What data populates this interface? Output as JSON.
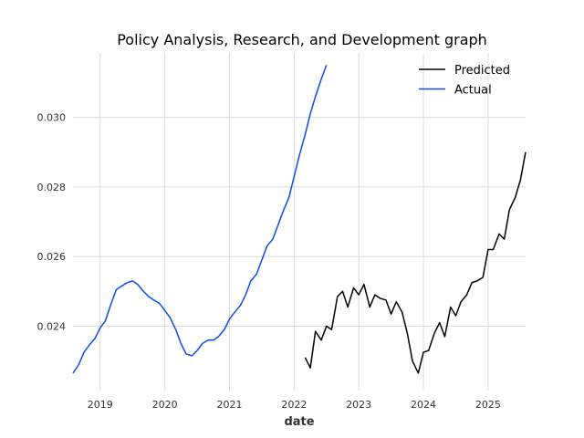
{
  "chart_data": {
    "type": "line",
    "title": "Policy Analysis, Research, and Development graph",
    "xlabel": "date",
    "ylabel": "",
    "xlim": [
      2018.58,
      2025.58
    ],
    "ylim": [
      0.02215,
      0.03185
    ],
    "x_ticks": [
      2019,
      2020,
      2021,
      2022,
      2023,
      2024,
      2025
    ],
    "x_tick_labels": [
      "2019",
      "2020",
      "2021",
      "2022",
      "2023",
      "2024",
      "2025"
    ],
    "y_ticks": [
      0.024,
      0.026,
      0.028,
      0.03
    ],
    "y_tick_labels": [
      "0.024",
      "0.026",
      "0.028",
      "0.030"
    ],
    "grid": true,
    "legend_position": "top-right",
    "series": [
      {
        "name": "Predicted",
        "color": "#000000",
        "x": [
          2022.17,
          2022.25,
          2022.33,
          2022.42,
          2022.5,
          2022.58,
          2022.67,
          2022.75,
          2022.83,
          2022.92,
          2023.0,
          2023.08,
          2023.17,
          2023.25,
          2023.33,
          2023.42,
          2023.5,
          2023.58,
          2023.67,
          2023.75,
          2023.83,
          2023.92,
          2024.0,
          2024.08,
          2024.17,
          2024.25,
          2024.33,
          2024.42,
          2024.5,
          2024.58,
          2024.67,
          2024.75,
          2024.83,
          2024.92,
          2025.0,
          2025.08,
          2025.17,
          2025.25,
          2025.33,
          2025.42,
          2025.5,
          2025.58
        ],
        "y": [
          0.0231,
          0.0228,
          0.02385,
          0.0236,
          0.024,
          0.0239,
          0.02485,
          0.025,
          0.02455,
          0.0251,
          0.0249,
          0.0252,
          0.02455,
          0.0249,
          0.0248,
          0.02475,
          0.02435,
          0.0247,
          0.0244,
          0.0238,
          0.023,
          0.02265,
          0.02325,
          0.0233,
          0.0238,
          0.0241,
          0.0237,
          0.02455,
          0.0243,
          0.0247,
          0.0249,
          0.02525,
          0.0253,
          0.0254,
          0.0262,
          0.0262,
          0.02665,
          0.0265,
          0.02735,
          0.0277,
          0.0282,
          0.029
        ]
      },
      {
        "name": "Actual",
        "color": "#0b4cf0",
        "x": [
          2018.58,
          2018.67,
          2018.75,
          2018.83,
          2018.92,
          2019.0,
          2019.08,
          2019.17,
          2019.25,
          2019.33,
          2019.42,
          2019.5,
          2019.58,
          2019.67,
          2019.75,
          2019.83,
          2019.92,
          2020.0,
          2020.08,
          2020.17,
          2020.25,
          2020.33,
          2020.42,
          2020.5,
          2020.58,
          2020.67,
          2020.75,
          2020.83,
          2020.92,
          2021.0,
          2021.08,
          2021.17,
          2021.25,
          2021.33,
          2021.42,
          2021.5,
          2021.58,
          2021.67,
          2021.75,
          2021.83,
          2021.92,
          2022.0,
          2022.08,
          2022.17,
          2022.25,
          2022.33,
          2022.42,
          2022.5
        ],
        "y": [
          0.02265,
          0.0229,
          0.02325,
          0.02345,
          0.02365,
          0.02395,
          0.02415,
          0.02465,
          0.02505,
          0.02515,
          0.02525,
          0.0253,
          0.0252,
          0.025,
          0.02485,
          0.02475,
          0.02465,
          0.02445,
          0.02425,
          0.0239,
          0.0235,
          0.0232,
          0.02315,
          0.0233,
          0.0235,
          0.0236,
          0.0236,
          0.0237,
          0.0239,
          0.0242,
          0.0244,
          0.0246,
          0.0249,
          0.0253,
          0.0255,
          0.0259,
          0.0263,
          0.0265,
          0.0269,
          0.0273,
          0.0277,
          0.0283,
          0.0289,
          0.0295,
          0.0301,
          0.0306,
          0.0311,
          0.0315
        ]
      }
    ]
  }
}
